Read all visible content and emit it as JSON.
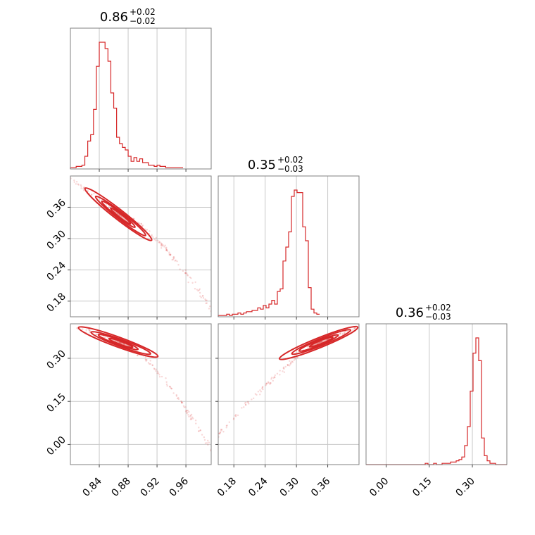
{
  "chart_data": {
    "type": "corner",
    "color": "#d62728",
    "titles": [
      {
        "value": "0.86",
        "plus": "+0.02",
        "minus": "−0.02"
      },
      {
        "value": "0.35",
        "plus": "+0.02",
        "minus": "−0.03"
      },
      {
        "value": "0.36",
        "plus": "+0.02",
        "minus": "−0.03"
      }
    ],
    "params": [
      {
        "range": [
          0.8,
          0.995
        ],
        "ticks": [
          0.84,
          0.88,
          0.92,
          0.96
        ],
        "tick_labels": [
          "0.84",
          "0.88",
          "0.92",
          "0.96"
        ]
      },
      {
        "range": [
          0.15,
          0.42
        ],
        "ticks": [
          0.18,
          0.24,
          0.3,
          0.36
        ],
        "tick_labels": [
          "0.18",
          "0.24",
          "0.30",
          "0.36"
        ]
      },
      {
        "range": [
          -0.07,
          0.42
        ],
        "ticks": [
          0.0,
          0.15,
          0.3
        ],
        "tick_labels": [
          "0.00",
          "0.15",
          "0.30"
        ]
      }
    ],
    "histograms": [
      {
        "x0": 0.8,
        "dx": 0.004,
        "counts": [
          1,
          1,
          2,
          2,
          3,
          10,
          22,
          27,
          47,
          81,
          100,
          100,
          95,
          85,
          60,
          48,
          25,
          20,
          17,
          15,
          10,
          6,
          9,
          6,
          8,
          5,
          5,
          3,
          3,
          2,
          3,
          2,
          2,
          1,
          1,
          1,
          1,
          1,
          1
        ]
      },
      {
        "x0": 0.15,
        "dx": 0.0054,
        "counts": [
          1,
          1,
          1,
          2,
          1,
          2,
          2,
          3,
          2,
          3,
          4,
          4,
          5,
          5,
          7,
          6,
          9,
          7,
          10,
          13,
          10,
          20,
          22,
          44,
          55,
          67,
          95,
          100,
          98,
          98,
          71,
          60,
          23,
          6,
          3,
          2
        ]
      },
      {
        "x0": -0.07,
        "dx": 0.0098,
        "counts": [
          0,
          0,
          0,
          0,
          0,
          0,
          0,
          0,
          0,
          0,
          0,
          0,
          0,
          0,
          0,
          0,
          0,
          0,
          0,
          0,
          0,
          1,
          0,
          0,
          1,
          0,
          0,
          1,
          1,
          1,
          2,
          2,
          3,
          4,
          6,
          15,
          30,
          58,
          88,
          100,
          82,
          21,
          7,
          3,
          1,
          1,
          0,
          0,
          0,
          0
        ]
      }
    ],
    "pairs": [
      {
        "x_param": 0,
        "y_param": 1,
        "center": [
          0.868,
          0.345
        ],
        "corr": -0.985
      },
      {
        "x_param": 0,
        "y_param": 2,
        "center": [
          0.868,
          0.355
        ],
        "corr": -0.93
      },
      {
        "x_param": 1,
        "y_param": 2,
        "center": [
          0.345,
          0.355
        ],
        "corr": 0.95
      }
    ]
  }
}
